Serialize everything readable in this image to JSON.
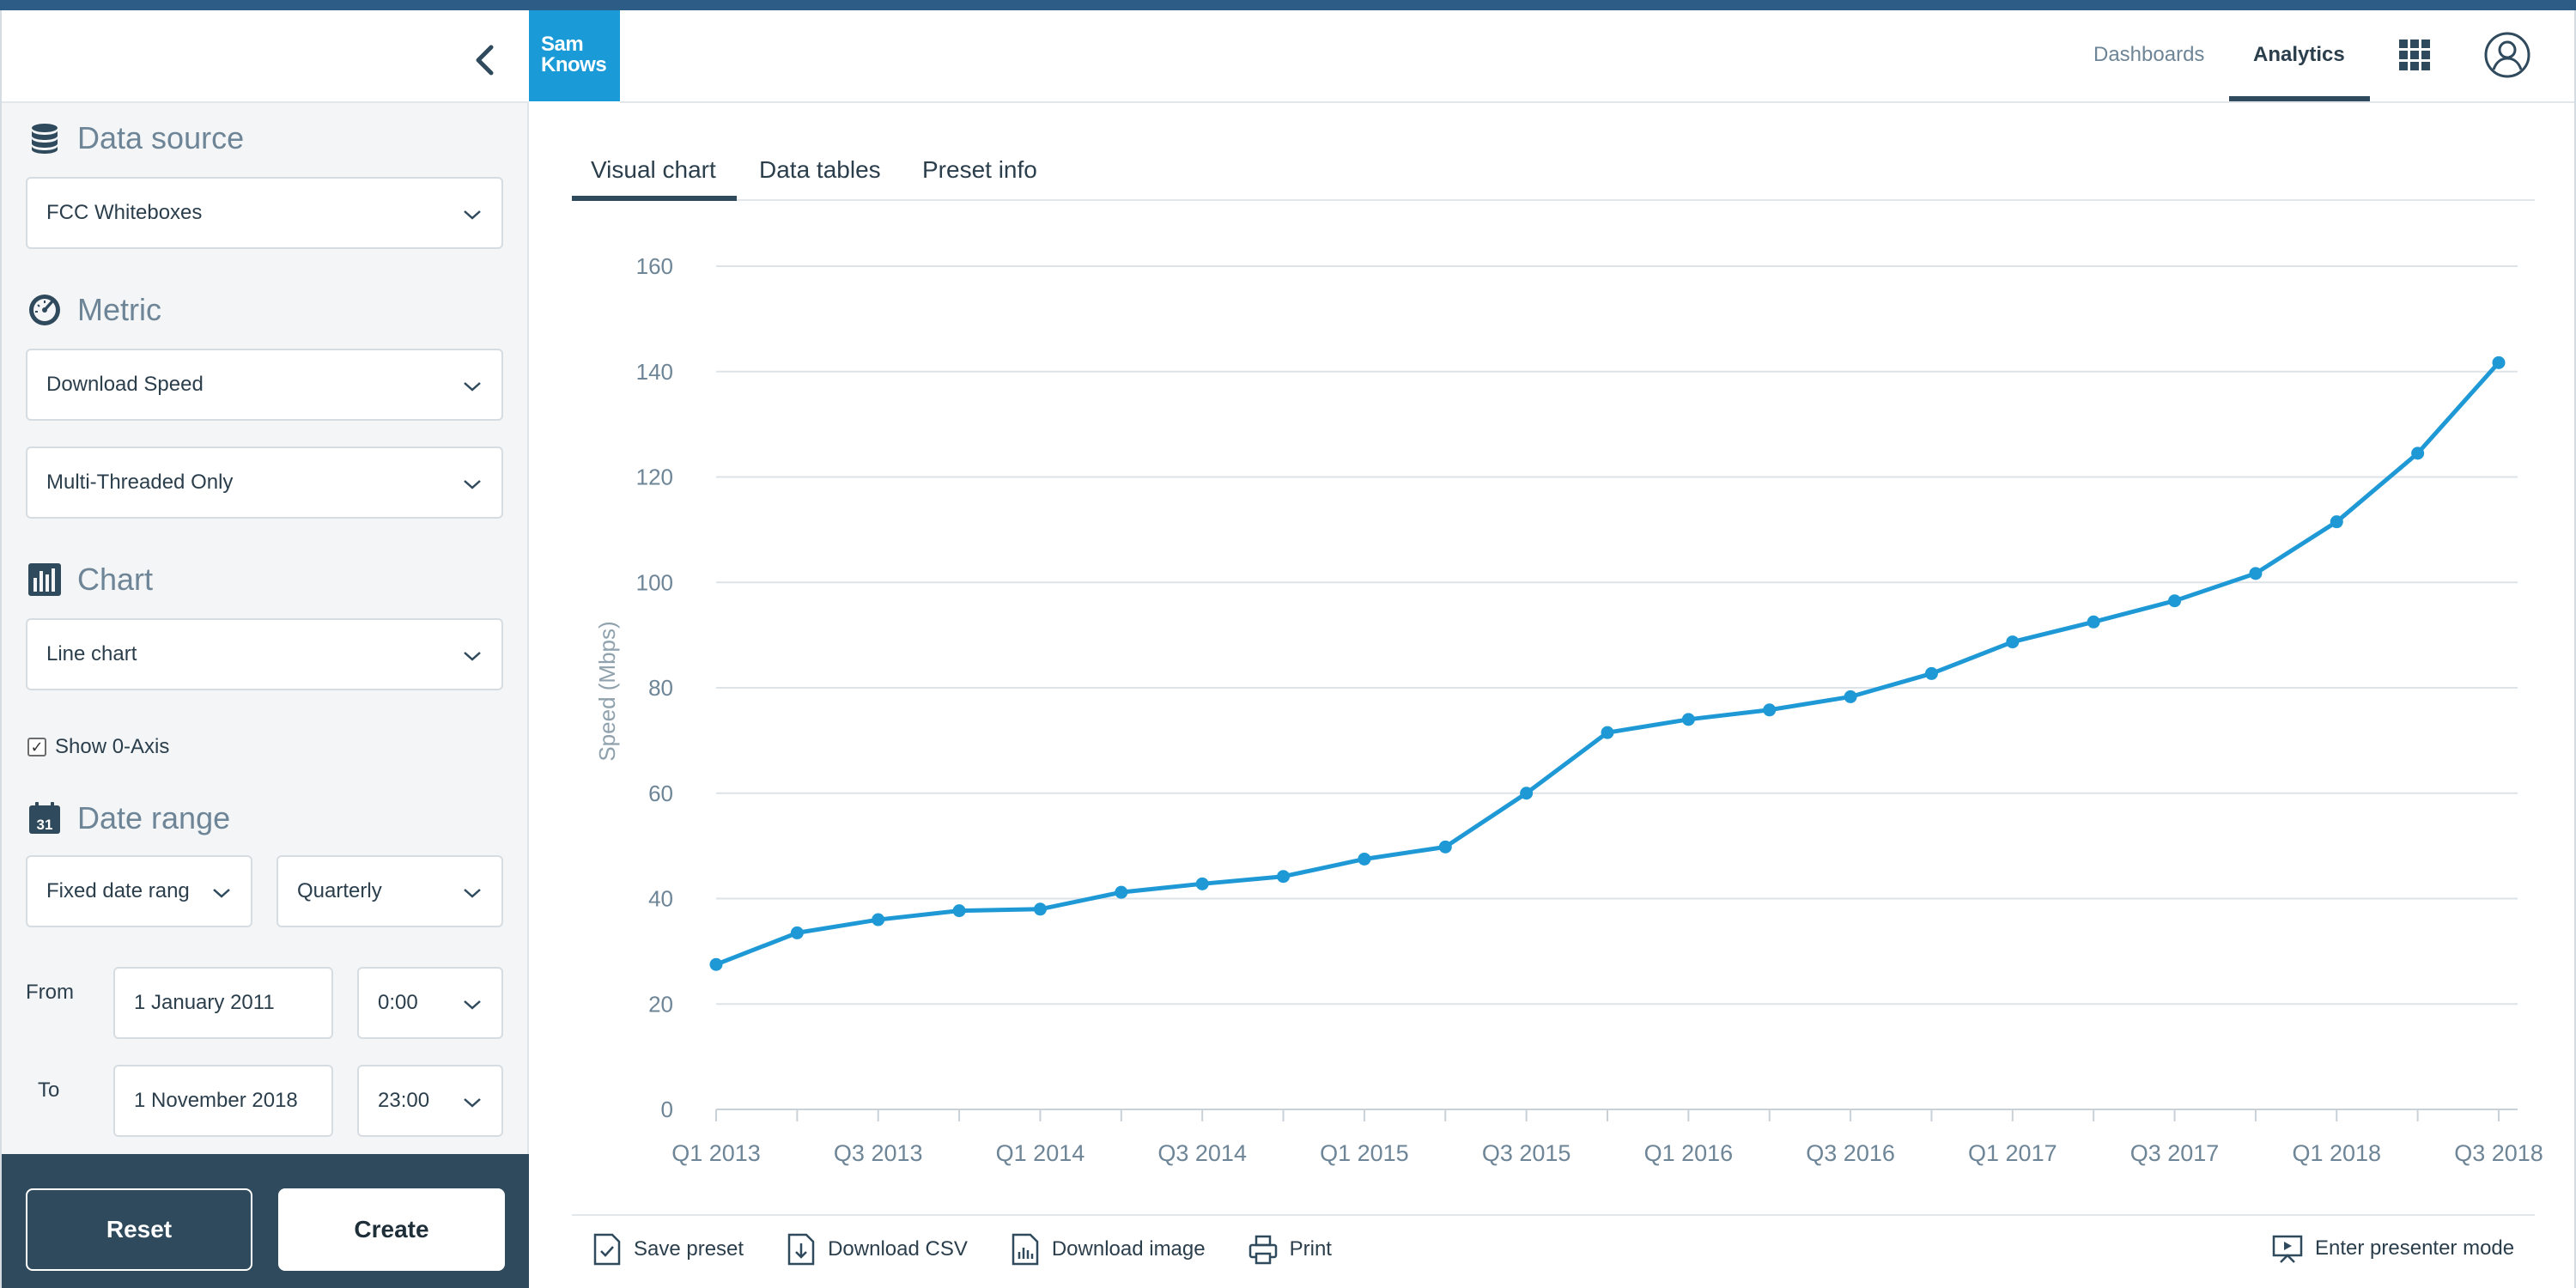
{
  "colors": {
    "accent_bar": "#2d5c86",
    "brand": "#1a9ad7",
    "sidebar_footer": "#2f4a5c",
    "series_line": "#1f99d5"
  },
  "brand": {
    "line1": "Sam",
    "line2": "Knows"
  },
  "header": {
    "nav": [
      {
        "label": "Dashboards",
        "active": false
      },
      {
        "label": "Analytics",
        "active": true
      }
    ],
    "icons": [
      "apps-grid-icon",
      "user-account-icon"
    ]
  },
  "sidebar": {
    "data_source": {
      "title": "Data source",
      "icon": "database-icon",
      "value": "FCC Whiteboxes"
    },
    "metric": {
      "title": "Metric",
      "icon": "gauge-icon",
      "value": "Download Speed",
      "sub_value": "Multi-Threaded Only"
    },
    "chart": {
      "title": "Chart",
      "icon": "bar-chart-icon",
      "value": "Line chart",
      "show_zero_axis_label": "Show 0-Axis",
      "show_zero_axis": true
    },
    "date_range": {
      "title": "Date range",
      "icon": "calendar-icon",
      "calendar_day": "31",
      "mode": "Fixed date rang",
      "granularity": "Quarterly",
      "from_label": "From",
      "from_date": "1 January 2011",
      "from_time": "0:00",
      "to_label": "To",
      "to_date": "1 November 2018",
      "to_time": "23:00"
    },
    "buttons": {
      "reset": "Reset",
      "create": "Create"
    }
  },
  "tabs": [
    {
      "label": "Visual chart",
      "active": true
    },
    {
      "label": "Data tables",
      "active": false
    },
    {
      "label": "Preset info",
      "active": false
    }
  ],
  "chart_data": {
    "type": "line",
    "title": "",
    "xlabel": "",
    "ylabel": "Speed (Mbps)",
    "ylim": [
      0,
      160
    ],
    "yticks": [
      0,
      20,
      40,
      60,
      80,
      100,
      120,
      140,
      160
    ],
    "grid": true,
    "legend": "none",
    "x": [
      "Q1 2013",
      "Q2 2013",
      "Q3 2013",
      "Q4 2013",
      "Q1 2014",
      "Q2 2014",
      "Q3 2014",
      "Q4 2014",
      "Q1 2015",
      "Q2 2015",
      "Q3 2015",
      "Q4 2015",
      "Q1 2016",
      "Q2 2016",
      "Q3 2016",
      "Q4 2016",
      "Q1 2017",
      "Q2 2017",
      "Q3 2017",
      "Q4 2017",
      "Q1 2018",
      "Q2 2018",
      "Q3 2018"
    ],
    "xtick_labels": [
      "Q1 2013",
      "Q3 2013",
      "Q1 2014",
      "Q3 2014",
      "Q1 2015",
      "Q3 2015",
      "Q1 2016",
      "Q3 2016",
      "Q1 2017",
      "Q3 2017",
      "Q1 2018",
      "Q3 2018"
    ],
    "series": [
      {
        "values": [
          27.5,
          33.5,
          36,
          37.7,
          38,
          41.2,
          42.8,
          44.2,
          47.5,
          49.8,
          60,
          71.5,
          74,
          75.8,
          78.3,
          82.7,
          88.7,
          92.5,
          96.5,
          101.7,
          111.5,
          124.5,
          141.7
        ]
      }
    ]
  },
  "actions": {
    "save_preset": "Save preset",
    "download_csv": "Download CSV",
    "download_image": "Download image",
    "print": "Print",
    "presenter": "Enter presenter mode"
  }
}
